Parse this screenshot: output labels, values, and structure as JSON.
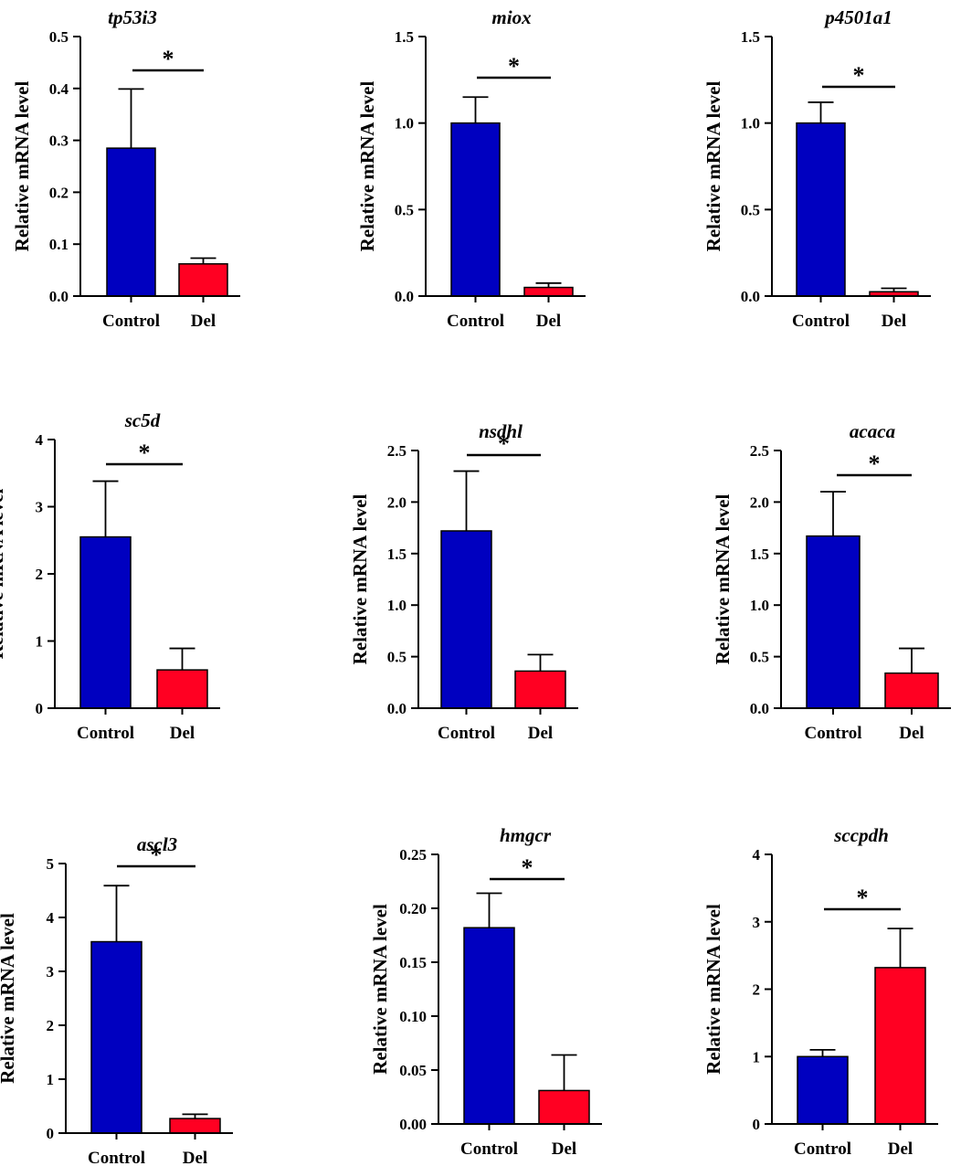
{
  "figure": {
    "ylabel": "Relative mRNA level",
    "significance_marker": "*",
    "colors": {
      "control": "#0000C0",
      "del": "#FF0022",
      "axis": "#000000"
    }
  },
  "chart_data": [
    {
      "type": "bar",
      "title": "tp53i3",
      "categories": [
        "Control",
        "Del"
      ],
      "values": [
        0.285,
        0.062
      ],
      "errors": [
        0.114,
        0.011
      ],
      "ylim": [
        0,
        0.5
      ],
      "yticks": [
        "0.0",
        "0.1",
        "0.2",
        "0.3",
        "0.4",
        "0.5"
      ],
      "ylabel": "Relative mRNA level",
      "significance": "*"
    },
    {
      "type": "bar",
      "title": "miox",
      "categories": [
        "Control",
        "Del"
      ],
      "values": [
        1.0,
        0.05
      ],
      "errors": [
        0.15,
        0.025
      ],
      "ylim": [
        0,
        1.5
      ],
      "yticks": [
        "0.0",
        "0.5",
        "1.0",
        "1.5"
      ],
      "ylabel": "Relative mRNA level",
      "significance": "*"
    },
    {
      "type": "bar",
      "title": "p4501a1",
      "categories": [
        "Control",
        "Del"
      ],
      "values": [
        1.0,
        0.025
      ],
      "errors": [
        0.12,
        0.02
      ],
      "ylim": [
        0,
        1.5
      ],
      "yticks": [
        "0.0",
        "0.5",
        "1.0",
        "1.5"
      ],
      "ylabel": "Relative mRNA level",
      "significance": "*"
    },
    {
      "type": "bar",
      "title": "sc5d",
      "categories": [
        "Control",
        "Del"
      ],
      "values": [
        2.55,
        0.57
      ],
      "errors": [
        0.83,
        0.32
      ],
      "ylim": [
        0,
        4
      ],
      "yticks": [
        "0",
        "1",
        "2",
        "3",
        "4"
      ],
      "ylabel": "Relative mRNA level",
      "significance": "*"
    },
    {
      "type": "bar",
      "title": "nsdhl",
      "categories": [
        "Control",
        "Del"
      ],
      "values": [
        1.72,
        0.36
      ],
      "errors": [
        0.58,
        0.16
      ],
      "ylim": [
        0,
        2.5
      ],
      "yticks": [
        "0.0",
        "0.5",
        "1.0",
        "1.5",
        "2.0",
        "2.5"
      ],
      "ylabel": "Relative mRNA level",
      "significance": "*"
    },
    {
      "type": "bar",
      "title": "acaca",
      "categories": [
        "Control",
        "Del"
      ],
      "values": [
        1.67,
        0.34
      ],
      "errors": [
        0.43,
        0.24
      ],
      "ylim": [
        0,
        2.5
      ],
      "yticks": [
        "0.0",
        "0.5",
        "1.0",
        "1.5",
        "2.0",
        "2.5"
      ],
      "ylabel": "Relative mRNA level",
      "significance": "*"
    },
    {
      "type": "bar",
      "title": "ascl3",
      "categories": [
        "Control",
        "Del"
      ],
      "values": [
        3.55,
        0.27
      ],
      "errors": [
        1.04,
        0.08
      ],
      "ylim": [
        0,
        5
      ],
      "yticks": [
        "0",
        "1",
        "2",
        "3",
        "4",
        "5"
      ],
      "ylabel": "Relative mRNA level",
      "significance": "*"
    },
    {
      "type": "bar",
      "title": "hmgcr",
      "categories": [
        "Control",
        "Del"
      ],
      "values": [
        0.182,
        0.031
      ],
      "errors": [
        0.032,
        0.033
      ],
      "ylim": [
        0,
        0.25
      ],
      "yticks": [
        "0.00",
        "0.05",
        "0.10",
        "0.15",
        "0.20",
        "0.25"
      ],
      "ylabel": "Relative mRNA level",
      "significance": "*"
    },
    {
      "type": "bar",
      "title": "sccpdh",
      "categories": [
        "Control",
        "Del"
      ],
      "values": [
        1.0,
        2.32
      ],
      "errors": [
        0.1,
        0.58
      ],
      "ylim": [
        0,
        4
      ],
      "yticks": [
        "0",
        "1",
        "2",
        "3",
        "4"
      ],
      "ylabel": "Relative mRNA level",
      "significance": "*"
    }
  ]
}
